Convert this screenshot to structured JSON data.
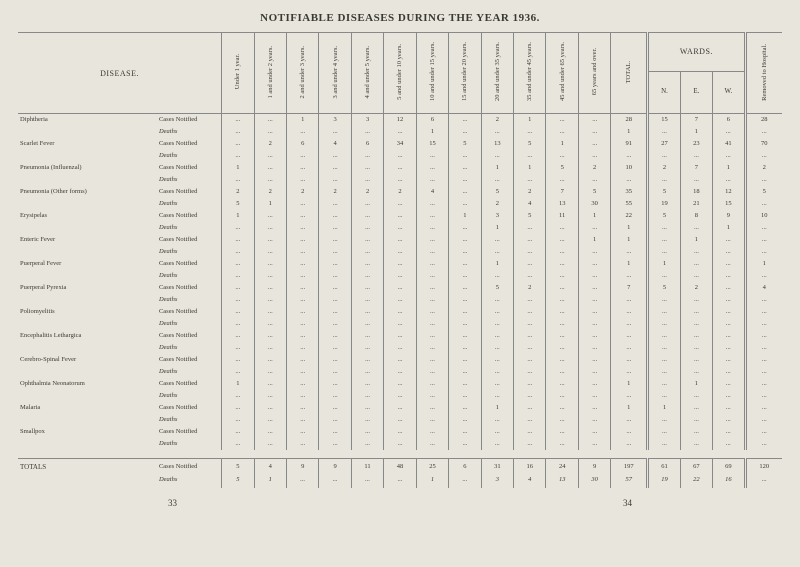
{
  "title": "NOTIFIABLE DISEASES DURING THE YEAR 1936.",
  "page_left": "33",
  "page_right": "34",
  "colors": {
    "background": "#e8e5dc",
    "text": "#3a3a34",
    "rule": "#888888"
  },
  "headers": {
    "disease": "DISEASE.",
    "total": "TOTAL.",
    "wards": "WARDS.",
    "removed": "Removed to Hospital.",
    "age_cols": [
      "Under 1 year.",
      "1 and under 2 years.",
      "2 and under 3 years.",
      "3 and under 4 years.",
      "4 and under 5 years.",
      "5 and under 10 years.",
      "10 and under 15 years.",
      "15 and under 20 years.",
      "20 and under 35 years.",
      "35 and under 45 years.",
      "45 and under 65 years.",
      "65 years and over."
    ],
    "ward_subs": [
      "N.",
      "E.",
      "W."
    ]
  },
  "diseases": [
    {
      "name": "Diphtheria",
      "notified": [
        "...",
        "...",
        "1",
        "3",
        "3",
        "12",
        "6",
        "...",
        "2",
        "1",
        "...",
        "...",
        "28",
        "15",
        "7",
        "6",
        "28"
      ],
      "deaths": [
        "...",
        "...",
        "...",
        "...",
        "...",
        "...",
        "1",
        "...",
        "...",
        "...",
        "...",
        "...",
        "1",
        "...",
        "1",
        "...",
        "..."
      ]
    },
    {
      "name": "Scarlet Fever",
      "notified": [
        "...",
        "2",
        "6",
        "4",
        "6",
        "34",
        "15",
        "5",
        "13",
        "5",
        "1",
        "...",
        "91",
        "27",
        "23",
        "41",
        "70"
      ],
      "deaths": [
        "...",
        "...",
        "...",
        "...",
        "...",
        "...",
        "...",
        "...",
        "...",
        "...",
        "...",
        "...",
        "...",
        "...",
        "...",
        "...",
        "..."
      ]
    },
    {
      "name": "Pneumonia (Influenzal)",
      "notified": [
        "1",
        "...",
        "...",
        "...",
        "...",
        "...",
        "...",
        "...",
        "1",
        "1",
        "5",
        "2",
        "10",
        "2",
        "7",
        "1",
        "2"
      ],
      "deaths": [
        "...",
        "...",
        "...",
        "...",
        "...",
        "...",
        "...",
        "...",
        "...",
        "...",
        "...",
        "...",
        "...",
        "...",
        "...",
        "...",
        "..."
      ]
    },
    {
      "name": "Pneumonia (Other forms)",
      "notified": [
        "2",
        "2",
        "2",
        "2",
        "2",
        "2",
        "4",
        "...",
        "5",
        "2",
        "7",
        "5",
        "35",
        "5",
        "18",
        "12",
        "5"
      ],
      "deaths": [
        "5",
        "1",
        "...",
        "...",
        "...",
        "...",
        "...",
        "...",
        "2",
        "4",
        "13",
        "30",
        "55",
        "19",
        "21",
        "15",
        "..."
      ]
    },
    {
      "name": "Erysipelas",
      "notified": [
        "1",
        "...",
        "...",
        "...",
        "...",
        "...",
        "...",
        "1",
        "3",
        "5",
        "11",
        "1",
        "22",
        "5",
        "8",
        "9",
        "10"
      ],
      "deaths": [
        "...",
        "...",
        "...",
        "...",
        "...",
        "...",
        "...",
        "...",
        "1",
        "...",
        "...",
        "...",
        "1",
        "...",
        "...",
        "1",
        "..."
      ]
    },
    {
      "name": "Enteric Fever",
      "notified": [
        "...",
        "...",
        "...",
        "...",
        "...",
        "...",
        "...",
        "...",
        "...",
        "...",
        "...",
        "1",
        "1",
        "...",
        "1",
        "...",
        "..."
      ],
      "deaths": [
        "...",
        "...",
        "...",
        "...",
        "...",
        "...",
        "...",
        "...",
        "...",
        "...",
        "...",
        "...",
        "...",
        "...",
        "...",
        "...",
        "..."
      ]
    },
    {
      "name": "Puerperal Fever",
      "notified": [
        "...",
        "...",
        "...",
        "...",
        "...",
        "...",
        "...",
        "...",
        "1",
        "...",
        "...",
        "...",
        "1",
        "1",
        "...",
        "...",
        "1"
      ],
      "deaths": [
        "...",
        "...",
        "...",
        "...",
        "...",
        "...",
        "...",
        "...",
        "...",
        "...",
        "...",
        "...",
        "...",
        "...",
        "...",
        "...",
        "..."
      ]
    },
    {
      "name": "Puerperal Pyrexia",
      "notified": [
        "...",
        "...",
        "...",
        "...",
        "...",
        "...",
        "...",
        "...",
        "5",
        "2",
        "...",
        "...",
        "7",
        "5",
        "2",
        "...",
        "4"
      ],
      "deaths": [
        "...",
        "...",
        "...",
        "...",
        "...",
        "...",
        "...",
        "...",
        "...",
        "...",
        "...",
        "...",
        "...",
        "...",
        "...",
        "...",
        "..."
      ]
    },
    {
      "name": "Poliomyelitis",
      "notified": [
        "...",
        "...",
        "...",
        "...",
        "...",
        "...",
        "...",
        "...",
        "...",
        "...",
        "...",
        "...",
        "...",
        "...",
        "...",
        "...",
        "..."
      ],
      "deaths": [
        "...",
        "...",
        "...",
        "...",
        "...",
        "...",
        "...",
        "...",
        "...",
        "...",
        "...",
        "...",
        "...",
        "...",
        "...",
        "...",
        "..."
      ]
    },
    {
      "name": "Encephalitis Lethargica",
      "notified": [
        "...",
        "...",
        "...",
        "...",
        "...",
        "...",
        "...",
        "...",
        "...",
        "...",
        "...",
        "...",
        "...",
        "...",
        "...",
        "...",
        "..."
      ],
      "deaths": [
        "...",
        "...",
        "...",
        "...",
        "...",
        "...",
        "...",
        "...",
        "...",
        "...",
        "...",
        "...",
        "...",
        "...",
        "...",
        "...",
        "..."
      ]
    },
    {
      "name": "Cerebro-Spinal Fever",
      "notified": [
        "...",
        "...",
        "...",
        "...",
        "...",
        "...",
        "...",
        "...",
        "...",
        "...",
        "...",
        "...",
        "...",
        "...",
        "...",
        "...",
        "..."
      ],
      "deaths": [
        "...",
        "...",
        "...",
        "...",
        "...",
        "...",
        "...",
        "...",
        "...",
        "...",
        "...",
        "...",
        "...",
        "...",
        "...",
        "...",
        "..."
      ]
    },
    {
      "name": "Ophthalmia Neonatorum",
      "notified": [
        "1",
        "...",
        "...",
        "...",
        "...",
        "...",
        "...",
        "...",
        "...",
        "...",
        "...",
        "...",
        "1",
        "...",
        "1",
        "...",
        "..."
      ],
      "deaths": [
        "...",
        "...",
        "...",
        "...",
        "...",
        "...",
        "...",
        "...",
        "...",
        "...",
        "...",
        "...",
        "...",
        "...",
        "...",
        "...",
        "..."
      ]
    },
    {
      "name": "Malaria",
      "notified": [
        "...",
        "...",
        "...",
        "...",
        "...",
        "...",
        "...",
        "...",
        "1",
        "...",
        "...",
        "...",
        "1",
        "1",
        "...",
        "...",
        "..."
      ],
      "deaths": [
        "...",
        "...",
        "...",
        "...",
        "...",
        "...",
        "...",
        "...",
        "...",
        "...",
        "...",
        "...",
        "...",
        "...",
        "...",
        "...",
        "..."
      ]
    },
    {
      "name": "Smallpox",
      "notified": [
        "...",
        "...",
        "...",
        "...",
        "...",
        "...",
        "...",
        "...",
        "...",
        "...",
        "...",
        "...",
        "...",
        "...",
        "...",
        "...",
        "..."
      ],
      "deaths": [
        "...",
        "...",
        "...",
        "...",
        "...",
        "...",
        "...",
        "...",
        "...",
        "...",
        "...",
        "...",
        "...",
        "...",
        "...",
        "...",
        "..."
      ]
    }
  ],
  "row_type_labels": {
    "notified": "Cases Notified",
    "deaths": "Deaths"
  },
  "totals": {
    "label": "TOTALS",
    "notified": [
      "5",
      "4",
      "9",
      "9",
      "11",
      "48",
      "25",
      "6",
      "31",
      "16",
      "24",
      "9",
      "197",
      "61",
      "67",
      "69",
      "120"
    ],
    "deaths": [
      "5",
      "1",
      "...",
      "...",
      "...",
      "...",
      "1",
      "...",
      "3",
      "4",
      "13",
      "30",
      "57",
      "19",
      "22",
      "16",
      "..."
    ]
  }
}
